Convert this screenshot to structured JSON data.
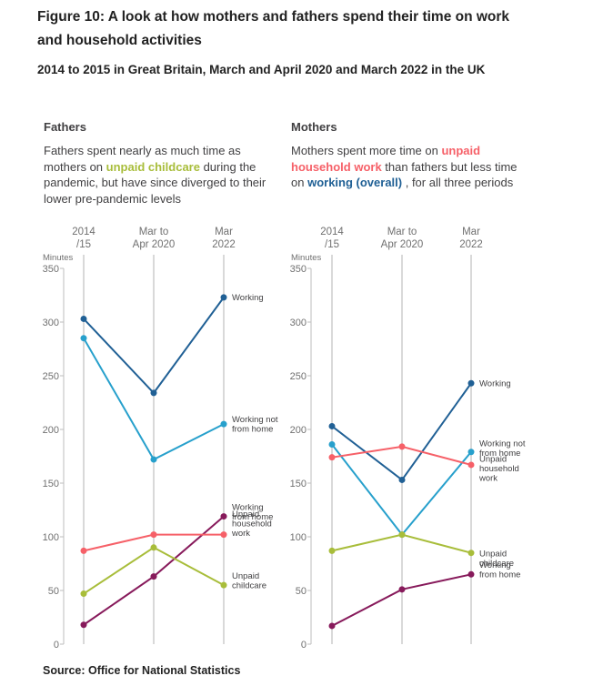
{
  "title": "Figure 10: A look at how mothers and fathers spend their time on work and household activities",
  "subtitle": "2014 to 2015 in Great Britain, March and April 2020 and March 2022 in the UK",
  "source": "Source: Office for National Statistics",
  "colors": {
    "working": "#206095",
    "working_not_from_home": "#27a0cc",
    "unpaid_household_work": "#f66068",
    "unpaid_childcare": "#a8bd3a",
    "working_from_home": "#871a5b"
  },
  "fathers": {
    "title": "Fathers",
    "desc": {
      "before": "Fathers spent nearly as much time as mothers on ",
      "highlight": "unpaid childcare",
      "after": " during the pandemic, but have since diverged to their lower pre-pandemic levels"
    }
  },
  "mothers": {
    "title": "Mothers",
    "desc": {
      "before": "Mothers spent more time on ",
      "highlight1": "unpaid household work",
      "middle": " than fathers but less time on ",
      "highlight2": "working (overall)",
      "after": " , for all three periods"
    }
  },
  "chart_data": [
    {
      "type": "line",
      "title": "Fathers",
      "ylabel": "Minutes",
      "ylim": [
        0,
        350
      ],
      "yticks": [
        0,
        50,
        100,
        150,
        200,
        250,
        300,
        350
      ],
      "categories": [
        [
          "2014",
          "/15"
        ],
        [
          "Mar to",
          "Apr 2020"
        ],
        [
          "Mar",
          "2022"
        ]
      ],
      "series": [
        {
          "name": "Working",
          "label_lines": [
            "Working"
          ],
          "color_key": "working",
          "values": [
            303,
            234,
            323
          ]
        },
        {
          "name": "Working not from home",
          "label_lines": [
            "Working not",
            "from home"
          ],
          "color_key": "working_not_from_home",
          "values": [
            285,
            172,
            205
          ]
        },
        {
          "name": "Working from home",
          "label_lines": [
            "Working",
            "from home"
          ],
          "color_key": "working_from_home",
          "values": [
            18,
            63,
            119
          ]
        },
        {
          "name": "Unpaid household work",
          "label_lines": [
            "Unpaid",
            "household",
            "work"
          ],
          "color_key": "unpaid_household_work",
          "values": [
            87,
            102,
            102
          ]
        },
        {
          "name": "Unpaid childcare",
          "label_lines": [
            "Unpaid",
            "childcare"
          ],
          "color_key": "unpaid_childcare",
          "values": [
            47,
            90,
            55
          ]
        }
      ]
    },
    {
      "type": "line",
      "title": "Mothers",
      "ylabel": "Minutes",
      "ylim": [
        0,
        350
      ],
      "yticks": [
        0,
        50,
        100,
        150,
        200,
        250,
        300,
        350
      ],
      "categories": [
        [
          "2014",
          "/15"
        ],
        [
          "Mar to",
          "Apr 2020"
        ],
        [
          "Mar",
          "2022"
        ]
      ],
      "series": [
        {
          "name": "Working",
          "label_lines": [
            "Working"
          ],
          "color_key": "working",
          "values": [
            203,
            153,
            243
          ]
        },
        {
          "name": "Working not from home",
          "label_lines": [
            "Working not",
            "from home"
          ],
          "color_key": "working_not_from_home",
          "values": [
            186,
            102,
            179
          ]
        },
        {
          "name": "Unpaid household work",
          "label_lines": [
            "Unpaid",
            "household",
            "work"
          ],
          "color_key": "unpaid_household_work",
          "values": [
            174,
            184,
            167
          ]
        },
        {
          "name": "Unpaid childcare",
          "label_lines": [
            "Unpaid",
            "childcare"
          ],
          "color_key": "unpaid_childcare",
          "values": [
            87,
            102,
            85
          ]
        },
        {
          "name": "Working from home",
          "label_lines": [
            "Working",
            "from home"
          ],
          "color_key": "working_from_home",
          "values": [
            17,
            51,
            65
          ]
        }
      ]
    }
  ]
}
